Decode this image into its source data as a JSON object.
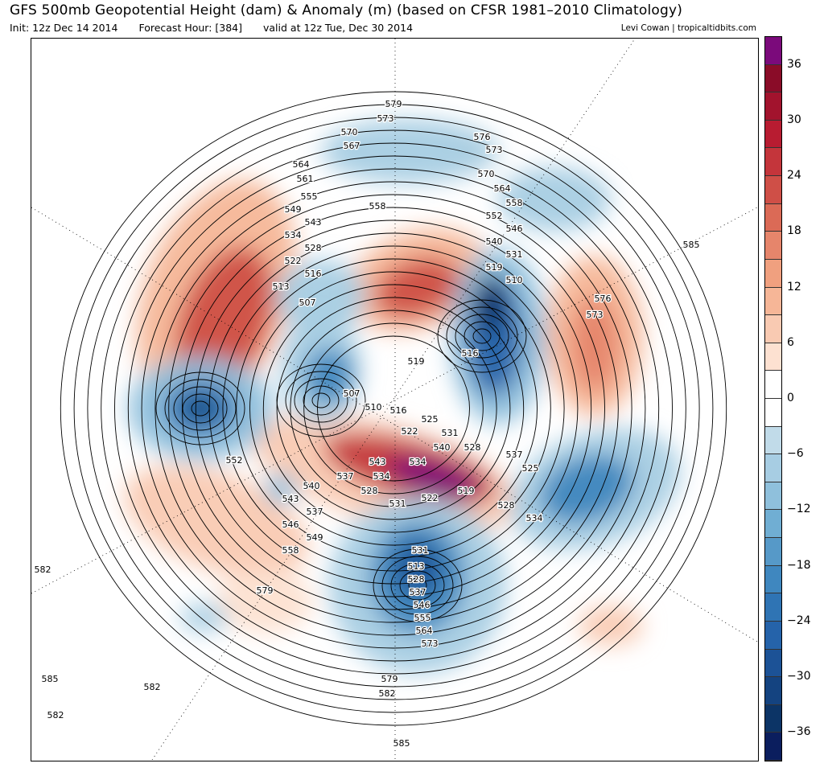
{
  "header": {
    "title": "GFS 500mb Geopotential Height (dam) & Anomaly (m) (based on CFSR 1981–2010 Climatology)",
    "init": "Init: 12z Dec 14 2014",
    "forecast_hour": "Forecast Hour: [384]",
    "valid": "valid at 12z Tue, Dec 30 2014",
    "credit": "Levi Cowan | tropicaltidbits.com"
  },
  "colorbar": {
    "units": "m",
    "range": [
      -39,
      39
    ],
    "step": 3,
    "tick_labels": [
      "36",
      "30",
      "24",
      "18",
      "12",
      "6",
      "0",
      "−6",
      "−12",
      "−18",
      "−24",
      "−30",
      "−36"
    ],
    "colors": [
      "#7b0a7b",
      "#8a0c28",
      "#a2132d",
      "#b81c31",
      "#c4353b",
      "#cf4f47",
      "#db6a56",
      "#e6856b",
      "#f0a07f",
      "#f6b697",
      "#f9cab2",
      "#fde1d1",
      "#ffffff",
      "#ffffff",
      "#c1dbe9",
      "#a7cde3",
      "#8fc0dc",
      "#70aed3",
      "#5699c8",
      "#3f87bf",
      "#2f74b4",
      "#2563aa",
      "#1c5296",
      "#144380",
      "#0c3466",
      "#0b1e5e"
    ]
  },
  "map": {
    "contour_labels": [
      "579",
      "573",
      "570",
      "567",
      "564",
      "561",
      "555",
      "549",
      "543",
      "534",
      "528",
      "522",
      "516",
      "513",
      "507",
      "558",
      "576",
      "573",
      "570",
      "564",
      "558",
      "552",
      "546",
      "540",
      "531",
      "519",
      "510",
      "585",
      "576",
      "573",
      "519",
      "516",
      "507",
      "510",
      "516",
      "525",
      "522",
      "531",
      "540",
      "528",
      "534",
      "537",
      "525",
      "519",
      "528",
      "534",
      "543",
      "537",
      "534",
      "528",
      "531",
      "522",
      "552",
      "540",
      "543",
      "537",
      "546",
      "549",
      "558",
      "531",
      "513",
      "528",
      "537",
      "546",
      "555",
      "564",
      "573",
      "579",
      "582",
      "585",
      "585",
      "582",
      "582",
      "582",
      "579"
    ]
  }
}
